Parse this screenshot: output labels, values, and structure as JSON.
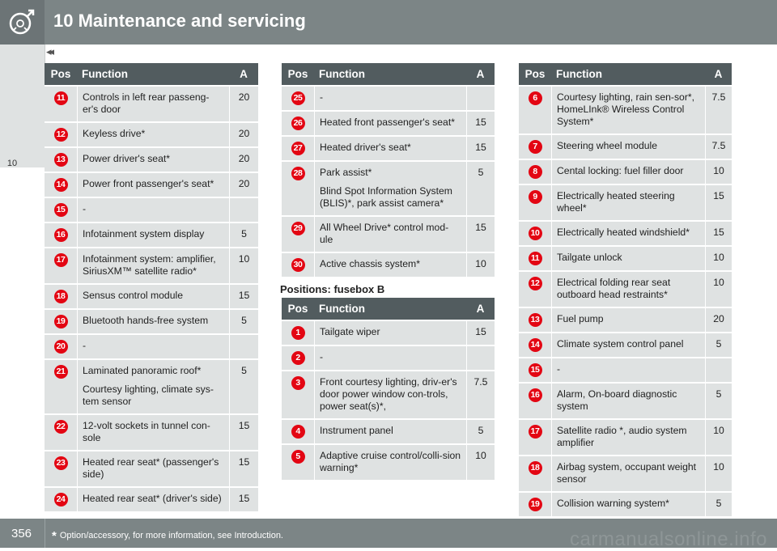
{
  "header": {
    "title": "10 Maintenance and servicing",
    "back_arrows": "◂◂"
  },
  "sidebar": {
    "chapter": "10"
  },
  "columns": {
    "pos": "Pos",
    "function": "Function",
    "amp": "A"
  },
  "tables": [
    {
      "rows": [
        {
          "pos": "11",
          "fn": [
            "Controls in left rear passeng-er's door"
          ],
          "amp": "20"
        },
        {
          "pos": "12",
          "fn": [
            "Keyless drive*"
          ],
          "amp": "20"
        },
        {
          "pos": "13",
          "fn": [
            "Power driver's seat*"
          ],
          "amp": "20"
        },
        {
          "pos": "14",
          "fn": [
            "Power front passenger's seat*"
          ],
          "amp": "20"
        },
        {
          "pos": "15",
          "fn": [
            "-"
          ],
          "amp": ""
        },
        {
          "pos": "16",
          "fn": [
            "Infotainment system display"
          ],
          "amp": "5"
        },
        {
          "pos": "17",
          "fn": [
            "Infotainment system: amplifier, SiriusXM™ satellite radio*"
          ],
          "amp": "10"
        },
        {
          "pos": "18",
          "fn": [
            "Sensus control module"
          ],
          "amp": "15"
        },
        {
          "pos": "19",
          "fn": [
            "Bluetooth hands-free system"
          ],
          "amp": "5"
        },
        {
          "pos": "20",
          "fn": [
            "-"
          ],
          "amp": ""
        },
        {
          "pos": "21",
          "fn": [
            "Laminated panoramic roof*",
            "Courtesy lighting, climate sys-tem sensor"
          ],
          "amp": "5"
        },
        {
          "pos": "22",
          "fn": [
            "12-volt sockets in tunnel con-sole"
          ],
          "amp": "15"
        },
        {
          "pos": "23",
          "fn": [
            "Heated rear seat* (passenger's side)"
          ],
          "amp": "15"
        },
        {
          "pos": "24",
          "fn": [
            "Heated rear seat* (driver's side)"
          ],
          "amp": "15"
        }
      ]
    },
    {
      "rows": [
        {
          "pos": "25",
          "fn": [
            "-"
          ],
          "amp": ""
        },
        {
          "pos": "26",
          "fn": [
            "Heated front passenger's seat*"
          ],
          "amp": "15"
        },
        {
          "pos": "27",
          "fn": [
            "Heated driver's seat*"
          ],
          "amp": "15"
        },
        {
          "pos": "28",
          "fn": [
            "Park assist*",
            "Blind Spot Information System (BLIS)*, park assist camera*"
          ],
          "amp": "5"
        },
        {
          "pos": "29",
          "fn": [
            "All Wheel Drive* control mod-ule"
          ],
          "amp": "15"
        },
        {
          "pos": "30",
          "fn": [
            "Active chassis system*"
          ],
          "amp": "10"
        }
      ]
    },
    {
      "rows": [
        {
          "pos": "1",
          "fn": [
            "Tailgate wiper"
          ],
          "amp": "15"
        },
        {
          "pos": "2",
          "fn": [
            "-"
          ],
          "amp": ""
        },
        {
          "pos": "3",
          "fn": [
            "Front courtesy lighting, driv-er's door power window con-trols, power seat(s)*,"
          ],
          "amp": "7.5"
        },
        {
          "pos": "4",
          "fn": [
            "Instrument panel"
          ],
          "amp": "5"
        },
        {
          "pos": "5",
          "fn": [
            "Adaptive cruise control/colli-sion warning*"
          ],
          "amp": "10"
        }
      ]
    },
    {
      "rows": [
        {
          "pos": "6",
          "fn": [
            "Courtesy lighting, rain sen-sor*, HomeLInk® Wireless Control System*"
          ],
          "amp": "7.5"
        },
        {
          "pos": "7",
          "fn": [
            "Steering wheel module"
          ],
          "amp": "7.5"
        },
        {
          "pos": "8",
          "fn": [
            "Cental locking: fuel filler door"
          ],
          "amp": "10"
        },
        {
          "pos": "9",
          "fn": [
            "Electrically heated steering wheel*"
          ],
          "amp": "15"
        },
        {
          "pos": "10",
          "fn": [
            "Electrically heated windshield*"
          ],
          "amp": "15"
        },
        {
          "pos": "11",
          "fn": [
            "Tailgate unlock"
          ],
          "amp": "10"
        },
        {
          "pos": "12",
          "fn": [
            "Electrical folding rear seat outboard head restraints*"
          ],
          "amp": "10"
        },
        {
          "pos": "13",
          "fn": [
            "Fuel pump"
          ],
          "amp": "20"
        },
        {
          "pos": "14",
          "fn": [
            "Climate system control panel"
          ],
          "amp": "5"
        },
        {
          "pos": "15",
          "fn": [
            "-"
          ],
          "amp": ""
        },
        {
          "pos": "16",
          "fn": [
            "Alarm, On-board diagnostic system"
          ],
          "amp": "5"
        },
        {
          "pos": "17",
          "fn": [
            "Satellite radio *, audio system amplifier"
          ],
          "amp": "10"
        },
        {
          "pos": "18",
          "fn": [
            "Airbag system, occupant weight sensor"
          ],
          "amp": "10"
        },
        {
          "pos": "19",
          "fn": [
            "Collision warning system*"
          ],
          "amp": "5"
        }
      ]
    }
  ],
  "fusebox_b_heading": "Positions: fusebox B",
  "footer": {
    "page": "356",
    "star": "*",
    "note": "Option/accessory, for more information, see Introduction."
  },
  "watermark": "carmanualsonline.info",
  "colors": {
    "badge": "#e30613",
    "header_bg": "#525c5f",
    "cell_bg": "#dfe2e2",
    "bar_bg": "#7c8586"
  }
}
